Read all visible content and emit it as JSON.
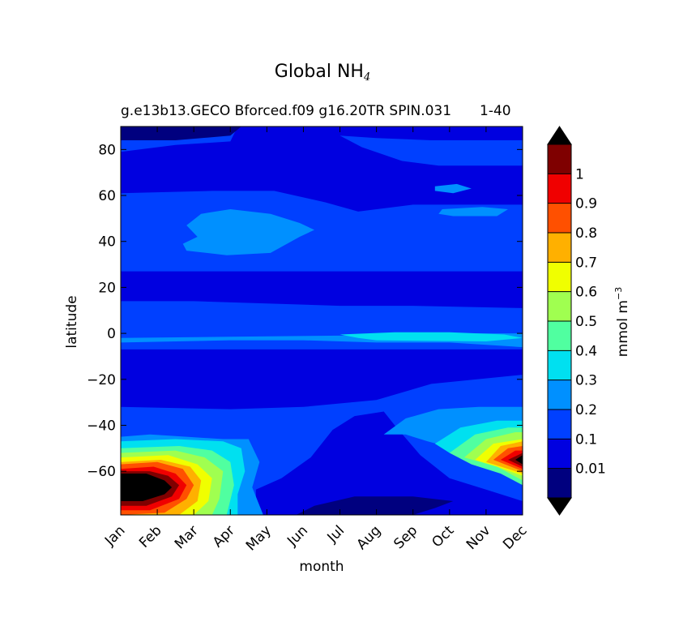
{
  "chart_data": {
    "type": "heatmap",
    "title": "Global NH",
    "title_subscript": "4",
    "subtitle": "g.e13b13.GECO Bforced.f09 g16.20TR SPIN.031",
    "subtitle_right": "1-40",
    "xlabel": "month",
    "ylabel": "latitude",
    "x_categories": [
      "Jan",
      "Feb",
      "Mar",
      "Apr",
      "May",
      "Jun",
      "Jul",
      "Aug",
      "Sep",
      "Oct",
      "Nov",
      "Dec"
    ],
    "y_ticks": [
      80,
      60,
      40,
      20,
      0,
      -20,
      -40,
      -60
    ],
    "y_tick_labels": [
      "80",
      "60",
      "40",
      "20",
      "0",
      "−20",
      "−40",
      "−60"
    ],
    "ylim": [
      -79,
      90
    ],
    "colorbar": {
      "label": "mmol m",
      "label_exponent": "−3",
      "levels": [
        0.01,
        0.1,
        0.2,
        0.3,
        0.4,
        0.5,
        0.6,
        0.7,
        0.8,
        0.9,
        1
      ],
      "level_labels": [
        "0.01",
        "0.1",
        "0.2",
        "0.3",
        "0.4",
        "0.5",
        "0.6",
        "0.7",
        "0.8",
        "0.9",
        "1"
      ],
      "colors": [
        "#00007f",
        "#0000e0",
        "#0040ff",
        "#0090ff",
        "#00e0f0",
        "#50ffa0",
        "#a0ff50",
        "#f0ff00",
        "#ffb000",
        "#ff5000",
        "#f00000",
        "#7f0000"
      ],
      "extend_min_color": "#000000",
      "extend_max_color": "#000000"
    }
  }
}
